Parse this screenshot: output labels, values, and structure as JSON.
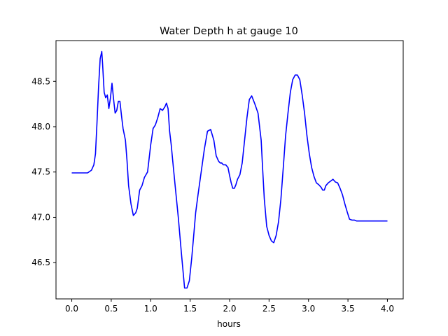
{
  "chart_data": {
    "type": "line",
    "title": "Water Depth h at gauge 10",
    "xlabel": "hours",
    "ylabel": "",
    "xlim": [
      -0.2,
      4.2
    ],
    "ylim": [
      46.1,
      48.95
    ],
    "xticks": [
      0.0,
      0.5,
      1.0,
      1.5,
      2.0,
      2.5,
      3.0,
      3.5,
      4.0
    ],
    "xtick_labels": [
      "0.0",
      "0.5",
      "1.0",
      "1.5",
      "2.0",
      "2.5",
      "3.0",
      "3.5",
      "4.0"
    ],
    "yticks": [
      46.5,
      47.0,
      47.5,
      48.0,
      48.5
    ],
    "ytick_labels": [
      "46.5",
      "47.0",
      "47.5",
      "48.0",
      "48.5"
    ],
    "grid": false,
    "line_color": "#0000ff",
    "series": [
      {
        "x": [
          0.0,
          0.1,
          0.2,
          0.25,
          0.28,
          0.3,
          0.32,
          0.34,
          0.36,
          0.38,
          0.39,
          0.41,
          0.43,
          0.45,
          0.47,
          0.49,
          0.51,
          0.53,
          0.55,
          0.57,
          0.59,
          0.61,
          0.63,
          0.65,
          0.68,
          0.7,
          0.72,
          0.75,
          0.78,
          0.81,
          0.83,
          0.86,
          0.89,
          0.92,
          0.96,
          1.0,
          1.03,
          1.06,
          1.09,
          1.12,
          1.15,
          1.18,
          1.2,
          1.22,
          1.24,
          1.26,
          1.28,
          1.31,
          1.35,
          1.39,
          1.43,
          1.46,
          1.49,
          1.52,
          1.55,
          1.57,
          1.6,
          1.64,
          1.68,
          1.72,
          1.76,
          1.8,
          1.83,
          1.86,
          1.88,
          1.9,
          1.92,
          1.95,
          1.98,
          2.0,
          2.02,
          2.04,
          2.06,
          2.08,
          2.1,
          2.13,
          2.16,
          2.19,
          2.22,
          2.25,
          2.28,
          2.32,
          2.36,
          2.4,
          2.42,
          2.44,
          2.47,
          2.5,
          2.53,
          2.56,
          2.59,
          2.62,
          2.65,
          2.68,
          2.71,
          2.74,
          2.77,
          2.8,
          2.83,
          2.86,
          2.89,
          2.92,
          2.95,
          2.98,
          3.01,
          3.04,
          3.07,
          3.1,
          3.13,
          3.16,
          3.18,
          3.2,
          3.22,
          3.25,
          3.28,
          3.31,
          3.34,
          3.37,
          3.4,
          3.43,
          3.46,
          3.49,
          3.52,
          3.55,
          3.58,
          3.61,
          3.64,
          3.66,
          3.68,
          3.7,
          3.73,
          3.76,
          3.79,
          3.82,
          3.85,
          3.88,
          3.91,
          3.94,
          3.97,
          4.0
        ],
        "y": [
          47.49,
          47.49,
          47.49,
          47.52,
          47.58,
          47.7,
          48.05,
          48.45,
          48.75,
          48.83,
          48.7,
          48.38,
          48.32,
          48.35,
          48.2,
          48.32,
          48.48,
          48.3,
          48.15,
          48.18,
          48.28,
          48.28,
          48.12,
          47.98,
          47.85,
          47.62,
          47.35,
          47.15,
          47.02,
          47.05,
          47.1,
          47.3,
          47.35,
          47.44,
          47.5,
          47.8,
          47.98,
          48.02,
          48.1,
          48.2,
          48.18,
          48.22,
          48.26,
          48.2,
          47.95,
          47.8,
          47.62,
          47.35,
          47.0,
          46.6,
          46.22,
          46.22,
          46.3,
          46.55,
          46.85,
          47.05,
          47.25,
          47.5,
          47.75,
          47.95,
          47.97,
          47.85,
          47.68,
          47.62,
          47.6,
          47.6,
          47.58,
          47.58,
          47.55,
          47.46,
          47.38,
          47.32,
          47.32,
          47.36,
          47.42,
          47.47,
          47.6,
          47.85,
          48.1,
          48.3,
          48.34,
          48.25,
          48.15,
          47.85,
          47.52,
          47.2,
          46.9,
          46.8,
          46.74,
          46.72,
          46.8,
          46.95,
          47.2,
          47.55,
          47.9,
          48.15,
          48.38,
          48.52,
          48.57,
          48.57,
          48.52,
          48.35,
          48.15,
          47.9,
          47.7,
          47.55,
          47.45,
          47.38,
          47.36,
          47.33,
          47.3,
          47.3,
          47.35,
          47.38,
          47.4,
          47.42,
          47.39,
          47.38,
          47.32,
          47.25,
          47.15,
          47.06,
          46.98,
          46.97,
          46.97,
          46.96,
          46.96,
          46.96,
          46.96,
          46.96,
          46.96,
          46.96,
          46.96,
          46.96,
          46.96,
          46.96,
          46.96,
          46.96,
          46.96,
          46.96
        ]
      }
    ]
  }
}
